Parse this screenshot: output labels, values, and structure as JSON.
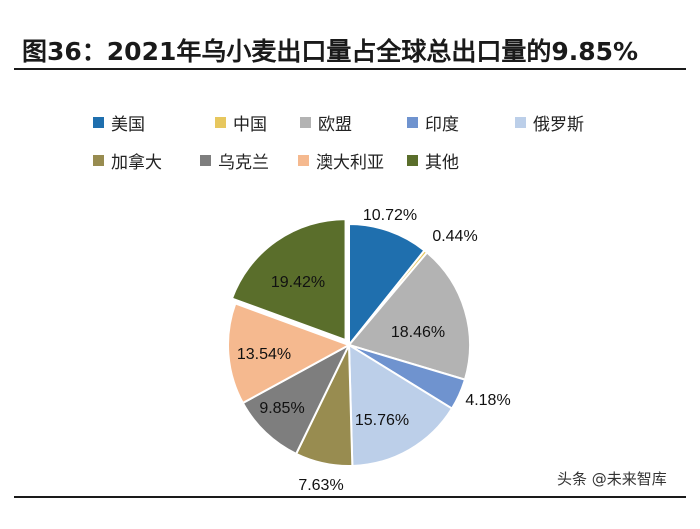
{
  "title": "图36：2021年乌小麦出口量占全球总出口量的9.85%",
  "watermark": "头条 @未来智库",
  "chart_data": {
    "type": "pie",
    "title": "",
    "legend_position": "top",
    "series": [
      {
        "name": "美国",
        "value": 10.72,
        "label": "10.72%",
        "color": "#1f6fae"
      },
      {
        "name": "中国",
        "value": 0.44,
        "label": "0.44%",
        "color": "#e7c75e"
      },
      {
        "name": "欧盟",
        "value": 18.46,
        "label": "18.46%",
        "color": "#b3b3b3"
      },
      {
        "name": "印度",
        "value": 4.18,
        "label": "4.18%",
        "color": "#6f93cf"
      },
      {
        "name": "俄罗斯",
        "value": 15.76,
        "label": "15.76%",
        "color": "#bccfe9"
      },
      {
        "name": "加拿大",
        "value": 7.63,
        "label": "7.63%",
        "color": "#988c50"
      },
      {
        "name": "乌克兰",
        "value": 9.85,
        "label": "9.85%",
        "color": "#7e7e7e"
      },
      {
        "name": "澳大利亚",
        "value": 13.54,
        "label": "13.54%",
        "color": "#f5b98f"
      },
      {
        "name": "其他",
        "value": 19.42,
        "label": "19.42%",
        "color": "#5a6e2b"
      }
    ]
  }
}
